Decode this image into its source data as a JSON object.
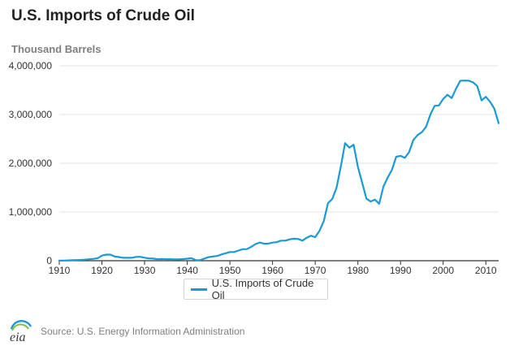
{
  "chart_title": "U.S. Imports of Crude Oil",
  "unit_label": "Thousand Barrels",
  "source_text": "Source: U.S. Energy Information Administration",
  "logo_text": "eia",
  "colors": {
    "line": "#1a9ad6",
    "grid": "#e3e3e3",
    "axis": "#333333",
    "tick_text": "#333333"
  },
  "chart_data": {
    "type": "line",
    "title": "U.S. Imports of Crude Oil",
    "xlabel": "",
    "ylabel": "Thousand Barrels",
    "xlim": [
      1910,
      2013
    ],
    "ylim": [
      0,
      4000000
    ],
    "x_ticks": [
      1910,
      1920,
      1930,
      1940,
      1950,
      1960,
      1970,
      1980,
      1990,
      2000,
      2010
    ],
    "y_ticks": [
      0,
      1000000,
      2000000,
      3000000,
      4000000
    ],
    "y_tick_labels": [
      "0",
      "1,000,000",
      "2,000,000",
      "3,000,000",
      "4,000,000"
    ],
    "grid": true,
    "legend": "bottom",
    "series": [
      {
        "name": "U.S. Imports of Crude Oil",
        "x": [
          1910,
          1911,
          1912,
          1913,
          1914,
          1915,
          1916,
          1917,
          1918,
          1919,
          1920,
          1921,
          1922,
          1923,
          1924,
          1925,
          1926,
          1927,
          1928,
          1929,
          1930,
          1931,
          1932,
          1933,
          1934,
          1935,
          1936,
          1937,
          1938,
          1939,
          1940,
          1941,
          1942,
          1943,
          1944,
          1945,
          1946,
          1947,
          1948,
          1949,
          1950,
          1951,
          1952,
          1953,
          1954,
          1955,
          1956,
          1957,
          1958,
          1959,
          1960,
          1961,
          1962,
          1963,
          1964,
          1965,
          1966,
          1967,
          1968,
          1969,
          1970,
          1971,
          1972,
          1973,
          1974,
          1975,
          1976,
          1977,
          1978,
          1979,
          1980,
          1981,
          1982,
          1983,
          1984,
          1985,
          1986,
          1987,
          1988,
          1989,
          1990,
          1991,
          1992,
          1993,
          1994,
          1995,
          1996,
          1997,
          1998,
          1999,
          2000,
          2001,
          2002,
          2003,
          2004,
          2005,
          2006,
          2007,
          2008,
          2009,
          2010,
          2011,
          2012,
          2013
        ],
        "values": [
          1000,
          4000,
          7000,
          10000,
          14000,
          17000,
          22000,
          30000,
          38000,
          52000,
          105000,
          125000,
          125000,
          85000,
          75000,
          60000,
          60000,
          60000,
          78000,
          80000,
          62000,
          48000,
          44000,
          32000,
          35000,
          32000,
          32000,
          28000,
          26000,
          33000,
          42000,
          51000,
          12000,
          14000,
          44000,
          74000,
          86000,
          97000,
          129000,
          153000,
          178000,
          179000,
          209000,
          236000,
          239000,
          285000,
          342000,
          373000,
          348000,
          352000,
          372000,
          381000,
          411000,
          412000,
          439000,
          452000,
          447000,
          411000,
          472000,
          514000,
          483000,
          613000,
          811000,
          1184000,
          1269000,
          1498000,
          1935000,
          2414000,
          2320000,
          2380000,
          1926000,
          1605000,
          1273000,
          1215000,
          1254000,
          1168000,
          1525000,
          1706000,
          1869000,
          2133000,
          2151000,
          2110000,
          2226000,
          2477000,
          2578000,
          2639000,
          2748000,
          3002000,
          3178000,
          3187000,
          3320000,
          3405000,
          3336000,
          3528000,
          3692000,
          3696000,
          3693000,
          3661000,
          3581000,
          3290000,
          3363000,
          3261000,
          3120000,
          2821000
        ]
      }
    ]
  },
  "legend_item": {
    "label": "U.S. Imports of Crude Oil"
  }
}
